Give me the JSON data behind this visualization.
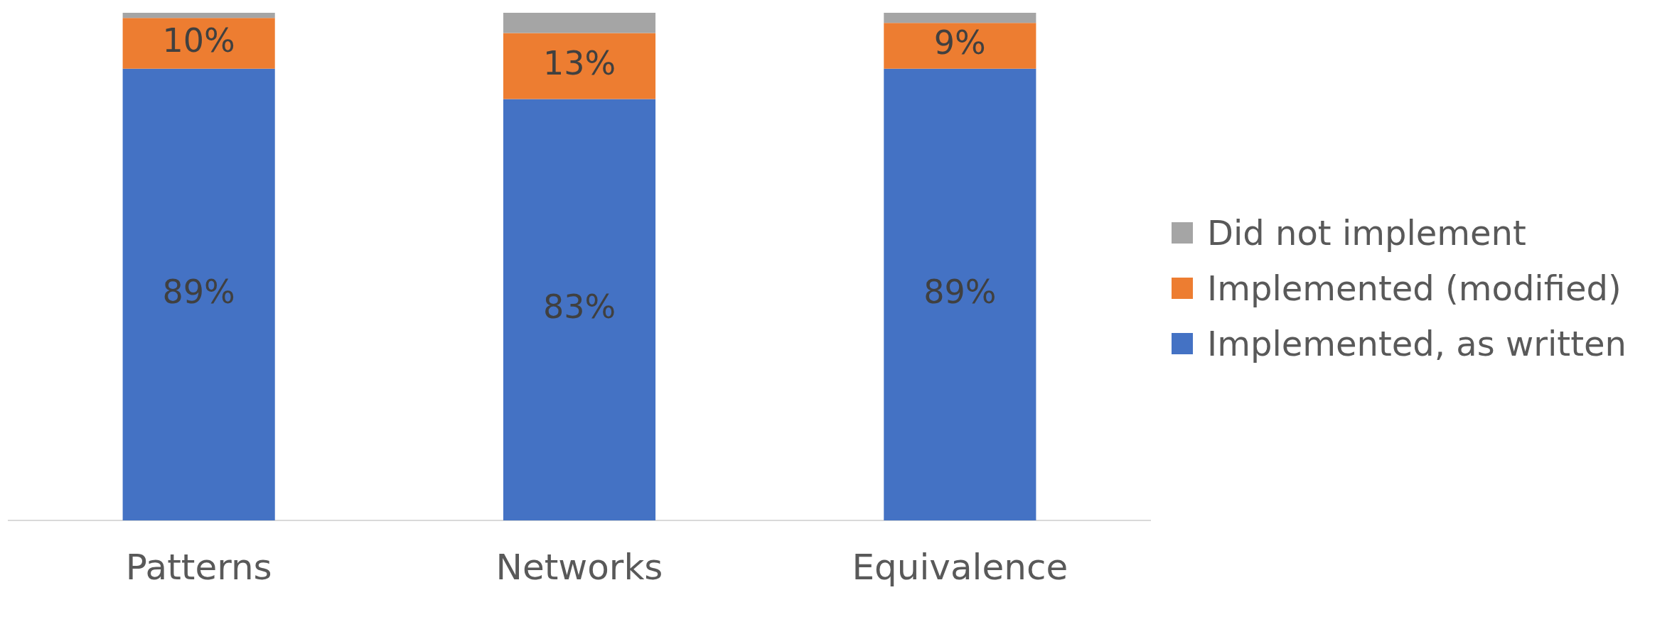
{
  "chart_data": {
    "type": "bar",
    "stacked": true,
    "categories": [
      "Patterns",
      "Networks",
      "Equivalence"
    ],
    "series": [
      {
        "name": "Implemented, as written",
        "color": "#4472c4",
        "values": [
          89,
          83,
          89
        ],
        "value_labels": [
          "89%",
          "83%",
          "89%"
        ]
      },
      {
        "name": "Implemented (modified)",
        "color": "#ed7d31",
        "values": [
          10,
          13,
          9
        ],
        "value_labels": [
          "10%",
          "13%",
          "9%"
        ]
      },
      {
        "name": "Did not implement",
        "color": "#a5a5a5",
        "values": [
          1,
          4,
          2
        ],
        "value_labels": [
          null,
          null,
          null
        ]
      }
    ],
    "ylim": [
      0,
      100
    ],
    "tick_labels": "x",
    "grid": false,
    "legend": "right"
  }
}
